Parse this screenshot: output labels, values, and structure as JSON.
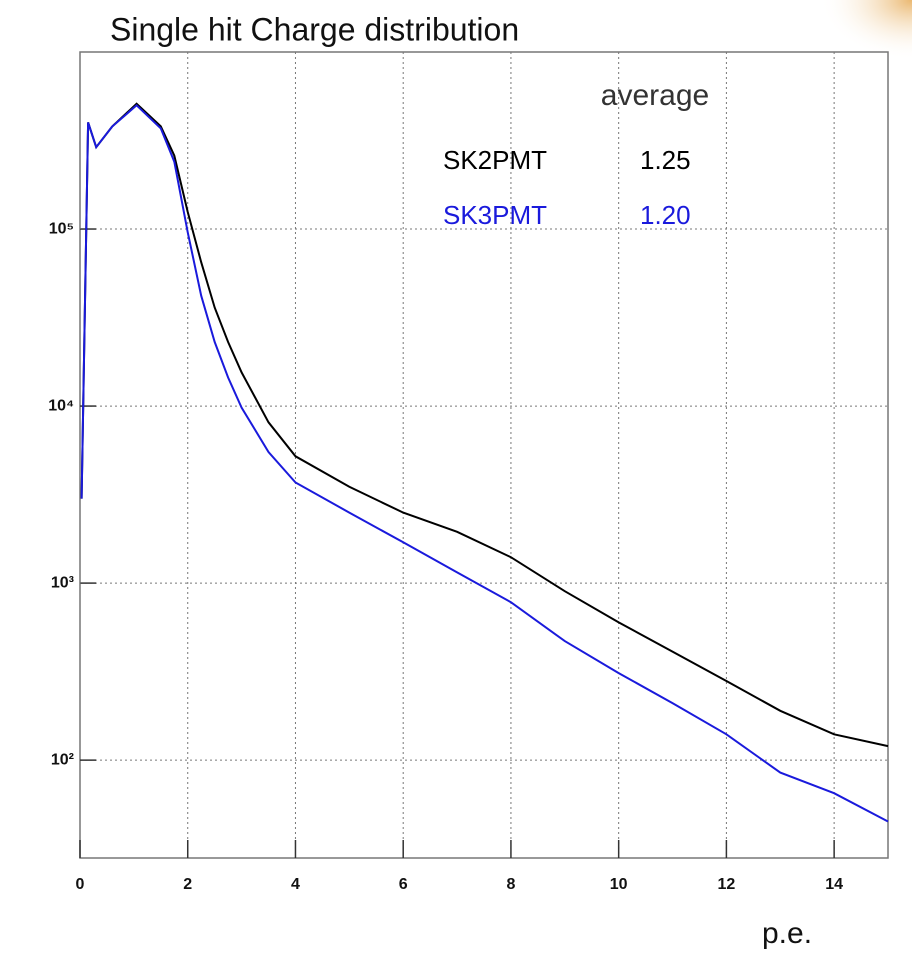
{
  "chart_data": {
    "type": "line",
    "title": "Single hit Charge distribution",
    "x_label": "p.e.",
    "annotation": "average",
    "log_y": true,
    "grid": true,
    "xlim": [
      0,
      15
    ],
    "ylim": [
      28,
      1000000
    ],
    "xticks": [
      0,
      2,
      4,
      6,
      8,
      10,
      12,
      14
    ],
    "yticks": [
      {
        "value": 100,
        "label": "10²"
      },
      {
        "value": 1000,
        "label": "10³"
      },
      {
        "value": 10000,
        "label": "10⁴"
      },
      {
        "value": 100000,
        "label": "10⁵"
      }
    ],
    "x": [
      0.03,
      0.15,
      0.3,
      0.6,
      1.05,
      1.5,
      1.75,
      2.0,
      2.25,
      2.5,
      2.75,
      3.0,
      3.5,
      4,
      5,
      6,
      7,
      8,
      9,
      10,
      11,
      12,
      13,
      14,
      15
    ],
    "series": [
      {
        "name": "SK2PMT",
        "color": "#000000",
        "average": 1.25,
        "values": [
          3000,
          400000,
          290000,
          380000,
          510000,
          380000,
          260000,
          125000,
          65000,
          36000,
          23000,
          15500,
          8100,
          5200,
          3500,
          2500,
          1950,
          1400,
          900,
          600,
          410,
          280,
          190,
          140,
          120
        ]
      },
      {
        "name": "SK3PMT",
        "color": "#1a1adc",
        "average": {
          "value": 1.2,
          "label": "1.20"
        },
        "values": [
          3000,
          400000,
          290000,
          380000,
          500000,
          370000,
          240000,
          96000,
          42000,
          23000,
          14500,
          9800,
          5500,
          3700,
          2500,
          1700,
          1150,
          780,
          470,
          310,
          210,
          140,
          85,
          65,
          45
        ]
      }
    ]
  }
}
